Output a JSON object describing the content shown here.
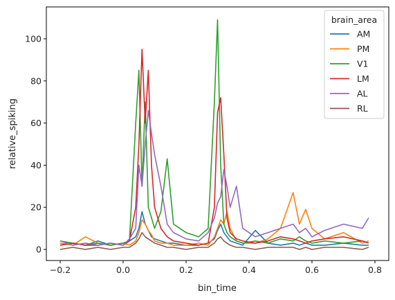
{
  "chart_data": {
    "type": "line",
    "title": "",
    "xlabel": "bin_time",
    "ylabel": "relative_spiking",
    "xlim": [
      -0.2,
      0.8
    ],
    "ylim": [
      0,
      110
    ],
    "x_ticks": [
      -0.2,
      0.0,
      0.2,
      0.4,
      0.6,
      0.8
    ],
    "x_tick_labels": [
      "−0.2",
      "0.0",
      "0.2",
      "0.4",
      "0.6",
      "0.8"
    ],
    "y_ticks": [
      0,
      20,
      40,
      60,
      80,
      100
    ],
    "y_tick_labels": [
      "0",
      "20",
      "40",
      "60",
      "80",
      "100"
    ],
    "grid": false,
    "legend": {
      "title": "brain_area",
      "placement": "top-right"
    },
    "x": [
      -0.2,
      -0.16,
      -0.12,
      -0.08,
      -0.04,
      0.0,
      0.02,
      0.04,
      0.05,
      0.06,
      0.07,
      0.08,
      0.09,
      0.1,
      0.12,
      0.14,
      0.16,
      0.2,
      0.24,
      0.27,
      0.29,
      0.3,
      0.31,
      0.32,
      0.33,
      0.34,
      0.36,
      0.38,
      0.42,
      0.46,
      0.5,
      0.54,
      0.56,
      0.58,
      0.6,
      0.64,
      0.7,
      0.76,
      0.78
    ],
    "series": [
      {
        "name": "AM",
        "color": "#1f77b4",
        "values": [
          2,
          3,
          2,
          4,
          2,
          3,
          4,
          6,
          10,
          18,
          12,
          9,
          6,
          5,
          4,
          3,
          3,
          2,
          2,
          3,
          5,
          9,
          12,
          8,
          6,
          4,
          3,
          2,
          9,
          3,
          2,
          3,
          2,
          3,
          2,
          2,
          3,
          2,
          2
        ]
      },
      {
        "name": "PM",
        "color": "#ff7f0e",
        "values": [
          3,
          2,
          6,
          3,
          2,
          3,
          2,
          4,
          8,
          14,
          12,
          9,
          7,
          4,
          3,
          3,
          2,
          2,
          3,
          2,
          6,
          10,
          14,
          12,
          18,
          10,
          4,
          3,
          3,
          5,
          10,
          27,
          12,
          19,
          10,
          5,
          8,
          3,
          4
        ]
      },
      {
        "name": "V1",
        "color": "#2ca02c",
        "values": [
          4,
          3,
          2,
          3,
          2,
          3,
          4,
          60,
          85,
          30,
          70,
          20,
          15,
          10,
          18,
          43,
          12,
          8,
          6,
          10,
          70,
          109,
          40,
          12,
          8,
          6,
          4,
          3,
          4,
          3,
          5,
          4,
          6,
          4,
          3,
          4,
          3,
          4,
          3
        ]
      },
      {
        "name": "LM",
        "color": "#d62728",
        "values": [
          2,
          3,
          2,
          2,
          3,
          2,
          4,
          20,
          50,
          95,
          60,
          85,
          40,
          20,
          10,
          6,
          4,
          3,
          2,
          3,
          20,
          65,
          72,
          45,
          15,
          8,
          5,
          4,
          3,
          4,
          6,
          5,
          4,
          3,
          4,
          5,
          6,
          4,
          3
        ]
      },
      {
        "name": "AL",
        "color": "#9467bd",
        "values": [
          4,
          2,
          3,
          2,
          3,
          2,
          5,
          10,
          40,
          30,
          50,
          66,
          55,
          45,
          30,
          12,
          8,
          5,
          4,
          8,
          15,
          22,
          25,
          38,
          30,
          20,
          30,
          10,
          6,
          8,
          10,
          12,
          8,
          10,
          6,
          9,
          12,
          10,
          15
        ]
      },
      {
        "name": "RL",
        "color": "#8c564b",
        "values": [
          0,
          1,
          0,
          1,
          0,
          1,
          1,
          3,
          5,
          8,
          6,
          5,
          4,
          3,
          2,
          1,
          1,
          0,
          1,
          1,
          3,
          5,
          6,
          4,
          3,
          2,
          1,
          1,
          0,
          1,
          1,
          1,
          0,
          1,
          0,
          1,
          1,
          0,
          1
        ]
      }
    ]
  }
}
